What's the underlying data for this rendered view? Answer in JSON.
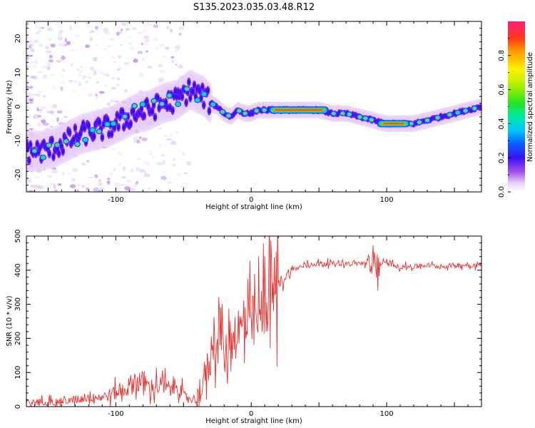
{
  "page": {
    "title": "S135.2023.035.03.48.R12"
  },
  "chart_data": [
    {
      "type": "heatmap",
      "xlabel": "Height of straight line (km)",
      "ylabel": "Frequency (Hz)",
      "xlim": [
        -166,
        170
      ],
      "ylim": [
        -25,
        25
      ],
      "xticks": [
        -100,
        0,
        100
      ],
      "yticks": [
        -20,
        -10,
        0,
        10,
        20
      ],
      "colorbar": {
        "label": "Normalized spectral amplitude",
        "range": [
          0,
          1
        ],
        "ticks": [
          0.0,
          0.2,
          0.4,
          0.6,
          0.8
        ]
      },
      "ridge": {
        "x": [
          -166,
          -155,
          -145,
          -135,
          -125,
          -115,
          -105,
          -95,
          -85,
          -75,
          -65,
          -55,
          -45,
          -40,
          -35,
          -30,
          -25,
          -20,
          -15,
          -10,
          -5,
          0,
          5,
          10,
          20,
          30,
          40,
          50,
          60,
          70,
          80,
          90,
          100,
          110,
          120,
          130,
          140,
          150,
          160,
          170
        ],
        "freq": [
          -13,
          -13,
          -12,
          -10,
          -8,
          -7,
          -6,
          -4,
          -2,
          -1,
          1,
          2,
          5,
          4,
          3,
          1,
          0,
          -2,
          -3,
          -1,
          -2,
          -2,
          -1,
          -1,
          -1,
          -1,
          -1,
          -1,
          -2,
          -2,
          -3,
          -4,
          -5,
          -5,
          -5,
          -4,
          -3,
          -2,
          -1,
          0
        ]
      }
    },
    {
      "type": "line",
      "xlabel": "Height of straight line (km)",
      "ylabel": "SNR (10 * v/v)",
      "xlim": [
        -166,
        170
      ],
      "ylim": [
        0,
        500
      ],
      "xticks": [
        -100,
        0,
        100
      ],
      "yticks": [
        0,
        100,
        200,
        300,
        400,
        500
      ],
      "color": "#e8312e",
      "series": [
        {
          "x": [
            -166,
            -150,
            -140,
            -130,
            -120,
            -110,
            -100,
            -90,
            -85,
            -80,
            -75,
            -70,
            -65,
            -60,
            -55,
            -50,
            -45,
            -40,
            -35,
            -30,
            -27,
            -25,
            -22,
            -20,
            -15,
            -10,
            -5,
            0,
            5,
            8,
            10,
            12,
            15,
            20,
            25,
            30,
            40,
            50,
            60,
            70,
            80,
            85,
            88,
            90,
            92,
            95,
            100,
            110,
            120,
            130,
            140,
            150,
            160,
            170
          ],
          "y": [
            12,
            15,
            15,
            20,
            30,
            28,
            40,
            60,
            80,
            70,
            55,
            60,
            60,
            50,
            70,
            30,
            25,
            20,
            80,
            140,
            240,
            180,
            250,
            130,
            210,
            220,
            230,
            240,
            250,
            280,
            300,
            320,
            330,
            360,
            380,
            400,
            415,
            420,
            420,
            420,
            420,
            420,
            400,
            440,
            410,
            420,
            420,
            410,
            410,
            415,
            410,
            415,
            415,
            415
          ]
        }
      ]
    }
  ]
}
